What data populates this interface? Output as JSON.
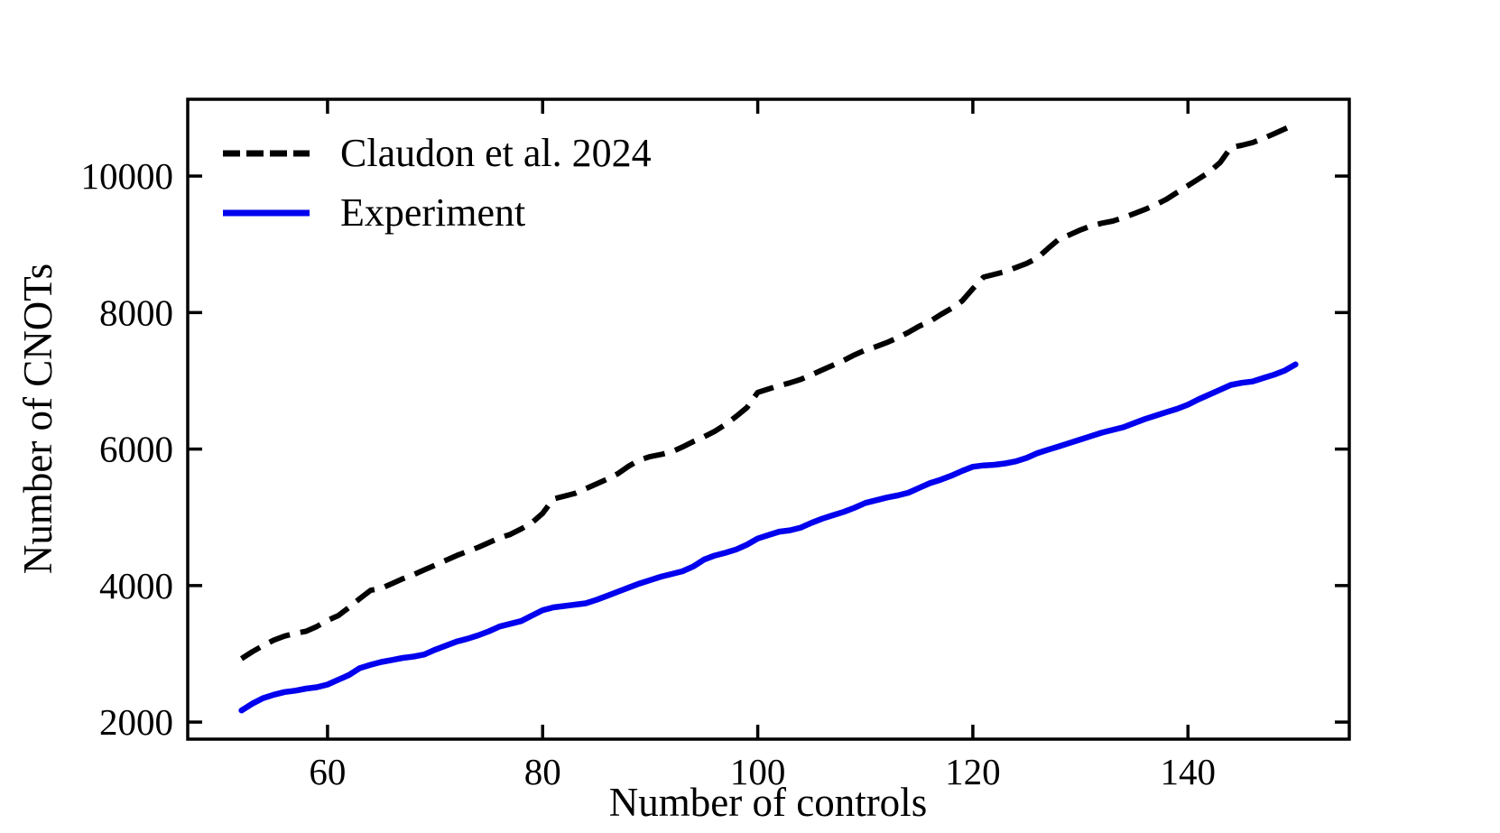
{
  "figure": {
    "background": "#ffffff",
    "axis_color": "#000000"
  },
  "chart_data": {
    "type": "line",
    "title": "",
    "xlabel": "Number of controls",
    "ylabel": "Number of CNOTs",
    "xlim": [
      47,
      155
    ],
    "ylim": [
      1750,
      11125
    ],
    "xticks": [
      "60",
      "80",
      "100",
      "120",
      "140"
    ],
    "xtick_values": [
      60,
      80,
      100,
      120,
      140
    ],
    "yticks": [
      "2000",
      "4000",
      "6000",
      "8000",
      "10000"
    ],
    "ytick_values": [
      2000,
      4000,
      6000,
      8000,
      10000
    ],
    "grid": false,
    "legend_position": "upper left",
    "series": [
      {
        "name": "Claudon et al. 2024",
        "color": "#000000",
        "line_style": "dashed",
        "line_width": 6,
        "points": [
          [
            52,
            2930
          ],
          [
            53,
            3030
          ],
          [
            54,
            3120
          ],
          [
            55,
            3200
          ],
          [
            56,
            3260
          ],
          [
            57,
            3300
          ],
          [
            58,
            3330
          ],
          [
            59,
            3400
          ],
          [
            60,
            3490
          ],
          [
            61,
            3560
          ],
          [
            62,
            3680
          ],
          [
            63,
            3810
          ],
          [
            64,
            3930
          ],
          [
            65,
            3960
          ],
          [
            66,
            4030
          ],
          [
            67,
            4100
          ],
          [
            68,
            4160
          ],
          [
            69,
            4230
          ],
          [
            70,
            4300
          ],
          [
            71,
            4370
          ],
          [
            72,
            4440
          ],
          [
            73,
            4500
          ],
          [
            74,
            4560
          ],
          [
            75,
            4630
          ],
          [
            76,
            4700
          ],
          [
            77,
            4750
          ],
          [
            78,
            4830
          ],
          [
            79,
            4920
          ],
          [
            80,
            5060
          ],
          [
            81,
            5270
          ],
          [
            82,
            5310
          ],
          [
            83,
            5350
          ],
          [
            84,
            5420
          ],
          [
            85,
            5490
          ],
          [
            86,
            5560
          ],
          [
            87,
            5640
          ],
          [
            88,
            5750
          ],
          [
            89,
            5840
          ],
          [
            90,
            5890
          ],
          [
            91,
            5920
          ],
          [
            92,
            5960
          ],
          [
            93,
            6030
          ],
          [
            94,
            6110
          ],
          [
            95,
            6180
          ],
          [
            96,
            6260
          ],
          [
            97,
            6360
          ],
          [
            98,
            6480
          ],
          [
            99,
            6610
          ],
          [
            100,
            6830
          ],
          [
            101,
            6880
          ],
          [
            102,
            6930
          ],
          [
            103,
            6970
          ],
          [
            104,
            7020
          ],
          [
            105,
            7090
          ],
          [
            106,
            7160
          ],
          [
            107,
            7230
          ],
          [
            108,
            7300
          ],
          [
            109,
            7380
          ],
          [
            110,
            7450
          ],
          [
            111,
            7500
          ],
          [
            112,
            7560
          ],
          [
            113,
            7630
          ],
          [
            114,
            7710
          ],
          [
            115,
            7800
          ],
          [
            116,
            7870
          ],
          [
            117,
            7970
          ],
          [
            118,
            8060
          ],
          [
            119,
            8170
          ],
          [
            120,
            8350
          ],
          [
            121,
            8520
          ],
          [
            122,
            8560
          ],
          [
            123,
            8600
          ],
          [
            124,
            8660
          ],
          [
            125,
            8720
          ],
          [
            126,
            8800
          ],
          [
            127,
            8940
          ],
          [
            128,
            9075
          ],
          [
            129,
            9140
          ],
          [
            130,
            9210
          ],
          [
            131,
            9270
          ],
          [
            132,
            9310
          ],
          [
            133,
            9340
          ],
          [
            134,
            9390
          ],
          [
            135,
            9450
          ],
          [
            136,
            9510
          ],
          [
            137,
            9580
          ],
          [
            138,
            9660
          ],
          [
            139,
            9760
          ],
          [
            140,
            9860
          ],
          [
            141,
            9960
          ],
          [
            142,
            10060
          ],
          [
            143,
            10200
          ],
          [
            144,
            10420
          ],
          [
            145,
            10450
          ],
          [
            146,
            10490
          ],
          [
            147,
            10550
          ],
          [
            148,
            10620
          ],
          [
            149,
            10690
          ],
          [
            150,
            10760
          ]
        ]
      },
      {
        "name": "Experiment",
        "color": "#0000ee",
        "line_style": "solid",
        "line_width": 6.5,
        "points": [
          [
            52,
            2170
          ],
          [
            53,
            2270
          ],
          [
            54,
            2350
          ],
          [
            55,
            2400
          ],
          [
            56,
            2440
          ],
          [
            57,
            2460
          ],
          [
            58,
            2490
          ],
          [
            59,
            2510
          ],
          [
            60,
            2550
          ],
          [
            61,
            2620
          ],
          [
            62,
            2690
          ],
          [
            63,
            2790
          ],
          [
            64,
            2840
          ],
          [
            65,
            2880
          ],
          [
            66,
            2910
          ],
          [
            67,
            2940
          ],
          [
            68,
            2960
          ],
          [
            69,
            2990
          ],
          [
            70,
            3060
          ],
          [
            71,
            3120
          ],
          [
            72,
            3180
          ],
          [
            73,
            3220
          ],
          [
            74,
            3270
          ],
          [
            75,
            3330
          ],
          [
            76,
            3400
          ],
          [
            77,
            3440
          ],
          [
            78,
            3480
          ],
          [
            79,
            3560
          ],
          [
            80,
            3640
          ],
          [
            81,
            3680
          ],
          [
            82,
            3700
          ],
          [
            83,
            3720
          ],
          [
            84,
            3740
          ],
          [
            85,
            3790
          ],
          [
            86,
            3850
          ],
          [
            87,
            3910
          ],
          [
            88,
            3970
          ],
          [
            89,
            4030
          ],
          [
            90,
            4080
          ],
          [
            91,
            4130
          ],
          [
            92,
            4170
          ],
          [
            93,
            4210
          ],
          [
            94,
            4280
          ],
          [
            95,
            4380
          ],
          [
            96,
            4440
          ],
          [
            97,
            4480
          ],
          [
            98,
            4530
          ],
          [
            99,
            4600
          ],
          [
            100,
            4690
          ],
          [
            101,
            4740
          ],
          [
            102,
            4790
          ],
          [
            103,
            4810
          ],
          [
            104,
            4850
          ],
          [
            105,
            4920
          ],
          [
            106,
            4980
          ],
          [
            107,
            5030
          ],
          [
            108,
            5080
          ],
          [
            109,
            5140
          ],
          [
            110,
            5210
          ],
          [
            111,
            5250
          ],
          [
            112,
            5290
          ],
          [
            113,
            5320
          ],
          [
            114,
            5360
          ],
          [
            115,
            5430
          ],
          [
            116,
            5500
          ],
          [
            117,
            5550
          ],
          [
            118,
            5610
          ],
          [
            119,
            5680
          ],
          [
            120,
            5740
          ],
          [
            121,
            5760
          ],
          [
            122,
            5770
          ],
          [
            123,
            5790
          ],
          [
            124,
            5820
          ],
          [
            125,
            5870
          ],
          [
            126,
            5940
          ],
          [
            127,
            5990
          ],
          [
            128,
            6040
          ],
          [
            129,
            6090
          ],
          [
            130,
            6140
          ],
          [
            131,
            6190
          ],
          [
            132,
            6240
          ],
          [
            133,
            6280
          ],
          [
            134,
            6320
          ],
          [
            135,
            6380
          ],
          [
            136,
            6440
          ],
          [
            137,
            6490
          ],
          [
            138,
            6540
          ],
          [
            139,
            6590
          ],
          [
            140,
            6650
          ],
          [
            141,
            6730
          ],
          [
            142,
            6800
          ],
          [
            143,
            6870
          ],
          [
            144,
            6940
          ],
          [
            145,
            6970
          ],
          [
            146,
            6990
          ],
          [
            147,
            7040
          ],
          [
            148,
            7090
          ],
          [
            149,
            7150
          ],
          [
            150,
            7240
          ]
        ]
      }
    ]
  }
}
